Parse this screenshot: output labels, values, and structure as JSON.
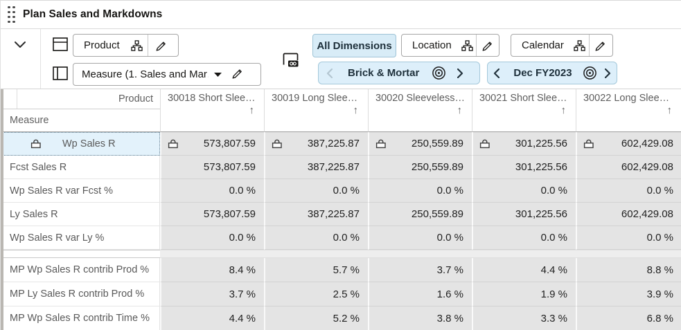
{
  "titlebar": {
    "title": "Plan Sales and Markdowns"
  },
  "toolbar": {
    "column_axis_button": "Product",
    "measure_dropdown_value": "Measure (1. Sales and Mar…",
    "all_dimensions_button": "All Dimensions",
    "location_button": "Location",
    "calendar_button": "Calendar",
    "location_context": "Brick & Mortar",
    "calendar_context": "Dec FY2023",
    "icons": [
      "drag-handle-icon",
      "collapse-chevron-icon",
      "column-axis-icon",
      "row-axis-icon",
      "hierarchy-icon",
      "edit-pencil-icon",
      "dropdown-caret-icon",
      "manage-views-icon",
      "chevron-left-icon",
      "chevron-right-icon",
      "bullseye-icon",
      "lock-icon",
      "sort-ascending-icon"
    ]
  },
  "grid": {
    "corner_label": "Product",
    "row_axis_label": "Measure",
    "columns": [
      {
        "label": "30018 Short Slee…",
        "sort": "asc"
      },
      {
        "label": "30019 Long Slee…",
        "sort": "asc"
      },
      {
        "label": "30020 Sleeveless…",
        "sort": "asc"
      },
      {
        "label": "30021 Short Slee…",
        "sort": "asc"
      },
      {
        "label": "30022 Long Slee…",
        "sort": "asc"
      }
    ],
    "rows": [
      {
        "label": "Wp Sales R",
        "locked": true,
        "selected": true,
        "values": [
          "573,807.59",
          "387,225.87",
          "250,559.89",
          "301,225.56",
          "602,429.08"
        ]
      },
      {
        "label": "Fcst Sales R",
        "values": [
          "573,807.59",
          "387,225.87",
          "250,559.89",
          "301,225.56",
          "602,429.08"
        ]
      },
      {
        "label": "Wp Sales R var Fcst %",
        "values": [
          "0.0 %",
          "0.0 %",
          "0.0 %",
          "0.0 %",
          "0.0 %"
        ]
      },
      {
        "label": "Ly Sales R",
        "values": [
          "573,807.59",
          "387,225.87",
          "250,559.89",
          "301,225.56",
          "602,429.08"
        ]
      },
      {
        "label": "Wp Sales R var Ly %",
        "values": [
          "0.0 %",
          "0.0 %",
          "0.0 %",
          "0.0 %",
          "0.0 %"
        ]
      },
      {
        "separator": true
      },
      {
        "label": "MP Wp Sales R contrib Prod %",
        "values": [
          "8.4 %",
          "5.7 %",
          "3.7 %",
          "4.4 %",
          "8.8 %"
        ]
      },
      {
        "label": "MP Ly Sales R contrib Prod %",
        "values": [
          "3.7 %",
          "2.5 %",
          "1.6 %",
          "1.9 %",
          "3.9 %"
        ]
      },
      {
        "label": "MP Wp Sales R contrib Time %",
        "values": [
          "4.4 %",
          "5.2 %",
          "3.8 %",
          "3.3 %",
          "6.8 %"
        ]
      }
    ],
    "sort_ascending_glyph": "↑"
  },
  "colors": {
    "accent_fill": "#d8ecf7",
    "accent_border": "#9ec3d6",
    "selected_row_fill": "#e3f2fb",
    "cell_fill": "#e4e4e4",
    "title_text": "#161513",
    "value_text": "#1f1f1f"
  }
}
